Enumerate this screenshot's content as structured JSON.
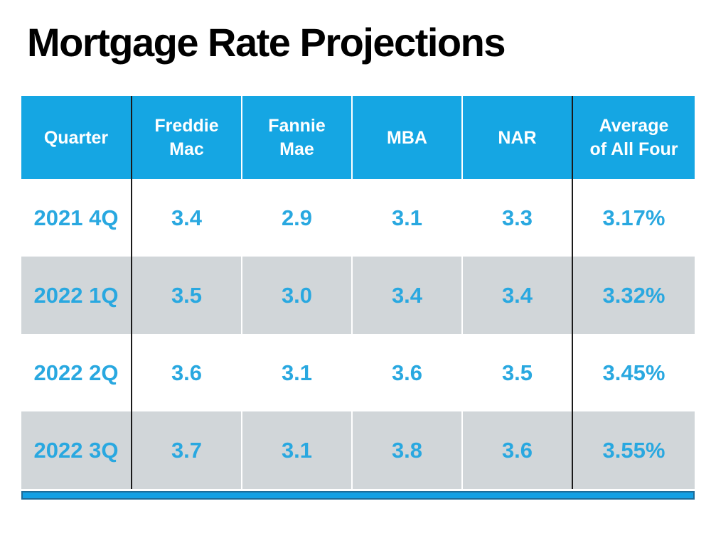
{
  "title": "Mortgage Rate Projections",
  "chart_data": {
    "type": "table",
    "title": "Mortgage Rate Projections",
    "columns": [
      "Quarter",
      "Freddie\nMac",
      "Fannie\nMae",
      "MBA",
      "NAR",
      "Average\nof All Four"
    ],
    "columns_plain": [
      "Quarter",
      "Freddie Mac",
      "Fannie Mae",
      "MBA",
      "NAR",
      "Average of All Four"
    ],
    "rows": [
      [
        "2021 4Q",
        "3.4",
        "2.9",
        "3.1",
        "3.3",
        "3.17%"
      ],
      [
        "2022 1Q",
        "3.5",
        "3.0",
        "3.4",
        "3.4",
        "3.32%"
      ],
      [
        "2022 2Q",
        "3.6",
        "3.1",
        "3.6",
        "3.5",
        "3.45%"
      ],
      [
        "2022 3Q",
        "3.7",
        "3.1",
        "3.8",
        "3.6",
        "3.55%"
      ]
    ]
  },
  "colors": {
    "header_bg": "#15a6e3",
    "header_text": "#ffffff",
    "value_text": "#29a8e0",
    "row_alt_bg": "#d1d6d9",
    "divider_dark": "#1a1a1a",
    "divider_light": "#ffffff",
    "bottom_bar_fill": "#14a0e4",
    "bottom_bar_border": "#1e6c99",
    "title_text": "#000000"
  }
}
